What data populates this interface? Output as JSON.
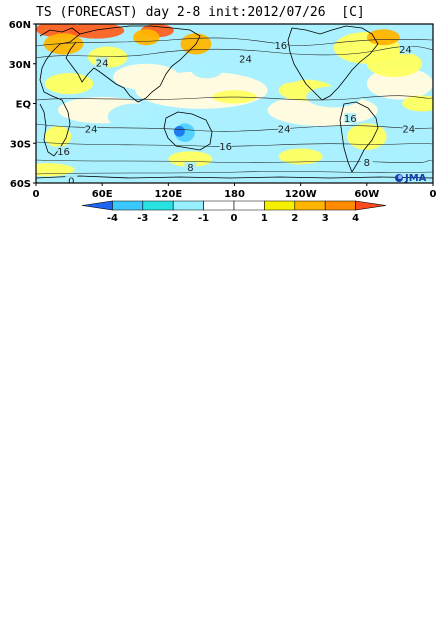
{
  "title": "TS (FORECAST) day 2-8 init:2012/07/26  [C]",
  "lat_labels": [
    "60N",
    "30N",
    "EQ",
    "30S",
    "60S"
  ],
  "lon_labels": [
    "0",
    "60E",
    "120E",
    "180",
    "120W",
    "60W",
    "0"
  ],
  "contour_labels": [
    {
      "text": "16",
      "lon": 222,
      "lat": 44
    },
    {
      "text": "24",
      "lon": 335,
      "lat": 41
    },
    {
      "text": "24",
      "lon": 60,
      "lat": 31
    },
    {
      "text": "24",
      "lon": 190,
      "lat": 34
    },
    {
      "text": "24",
      "lon": 50,
      "lat": -19
    },
    {
      "text": "24",
      "lon": 225,
      "lat": -19
    },
    {
      "text": "24",
      "lon": 338,
      "lat": -19
    },
    {
      "text": "16",
      "lon": 285,
      "lat": -11
    },
    {
      "text": "16",
      "lon": 25,
      "lat": -36
    },
    {
      "text": "16",
      "lon": 172,
      "lat": -32
    },
    {
      "text": "8",
      "lon": 140,
      "lat": -48
    },
    {
      "text": "8",
      "lon": 300,
      "lat": -44
    },
    {
      "text": "0",
      "lon": 32,
      "lat": -58
    }
  ],
  "colorbar": {
    "ticks": [
      "-4",
      "-3",
      "-2",
      "-1",
      "0",
      "1",
      "2",
      "3",
      "4"
    ],
    "colors": [
      "#1e64f0",
      "#3cc8ff",
      "#28e2e2",
      "#96f0ff",
      "#ffffff",
      "#ffffff",
      "#f5f000",
      "#ffb400",
      "#ff8c00",
      "#ff4a1e"
    ],
    "unit": "C"
  },
  "logo": {
    "text": "JMA",
    "color": "#1a3fa8"
  },
  "colors": {
    "land_stroke": "#000000",
    "contour": "#222222",
    "ocean_cool": "#aaf0ff",
    "cool_med": "#50d0ff",
    "cool_strong": "#1e78f0",
    "warm_weak": "#ffff60",
    "warm_med": "#ffb400",
    "warm_strong": "#ff6020"
  },
  "anomaly_patches": [
    {
      "lon": 20,
      "lat": 56,
      "rx": 20,
      "ry": 6,
      "level": 3
    },
    {
      "lon": 55,
      "lat": 55,
      "rx": 25,
      "ry": 6,
      "level": 3
    },
    {
      "lon": 110,
      "lat": 55,
      "rx": 15,
      "ry": 5,
      "level": 3
    },
    {
      "lon": 25,
      "lat": 45,
      "rx": 18,
      "ry": 8,
      "level": 2
    },
    {
      "lon": 100,
      "lat": 50,
      "rx": 12,
      "ry": 6,
      "level": 2
    },
    {
      "lon": 145,
      "lat": 45,
      "rx": 14,
      "ry": 8,
      "level": 2
    },
    {
      "lon": 300,
      "lat": 42,
      "rx": 30,
      "ry": 12,
      "level": 1
    },
    {
      "lon": 315,
      "lat": 50,
      "rx": 15,
      "ry": 6,
      "level": 2
    },
    {
      "lon": 325,
      "lat": 30,
      "rx": 25,
      "ry": 10,
      "level": 1
    },
    {
      "lon": 65,
      "lat": 35,
      "rx": 18,
      "ry": 8,
      "level": 1
    },
    {
      "lon": 30,
      "lat": 15,
      "rx": 22,
      "ry": 8,
      "level": 1
    },
    {
      "lon": 350,
      "lat": 0,
      "rx": 18,
      "ry": 6,
      "level": 1
    },
    {
      "lon": 180,
      "lat": 5,
      "rx": 20,
      "ry": 5,
      "level": 1
    },
    {
      "lon": 245,
      "lat": 10,
      "rx": 25,
      "ry": 8,
      "level": 1
    },
    {
      "lon": 20,
      "lat": -25,
      "rx": 12,
      "ry": 8,
      "level": 1
    },
    {
      "lon": 300,
      "lat": -25,
      "rx": 18,
      "ry": 10,
      "level": 1
    },
    {
      "lon": 140,
      "lat": -42,
      "rx": 20,
      "ry": 6,
      "level": 1
    },
    {
      "lon": 240,
      "lat": -40,
      "rx": 20,
      "ry": 6,
      "level": 1
    },
    {
      "lon": 10,
      "lat": -50,
      "rx": 25,
      "ry": 5,
      "level": 1
    },
    {
      "lon": 155,
      "lat": 25,
      "rx": 14,
      "ry": 6,
      "level": -1
    },
    {
      "lon": 220,
      "lat": 25,
      "rx": 30,
      "ry": 10,
      "level": -1
    },
    {
      "lon": 270,
      "lat": 5,
      "rx": 25,
      "ry": 8,
      "level": -1
    },
    {
      "lon": 200,
      "lat": -25,
      "rx": 30,
      "ry": 8,
      "level": -1
    },
    {
      "lon": 90,
      "lat": -10,
      "rx": 25,
      "ry": 10,
      "level": -1
    },
    {
      "lon": 330,
      "lat": -45,
      "rx": 25,
      "ry": 8,
      "level": -1
    },
    {
      "lon": 75,
      "lat": -45,
      "rx": 25,
      "ry": 6,
      "level": -1
    },
    {
      "lon": 135,
      "lat": -22,
      "rx": 9,
      "ry": 7,
      "level": -2
    },
    {
      "lon": 130,
      "lat": -21,
      "rx": 5,
      "ry": 4,
      "level": -3
    }
  ]
}
